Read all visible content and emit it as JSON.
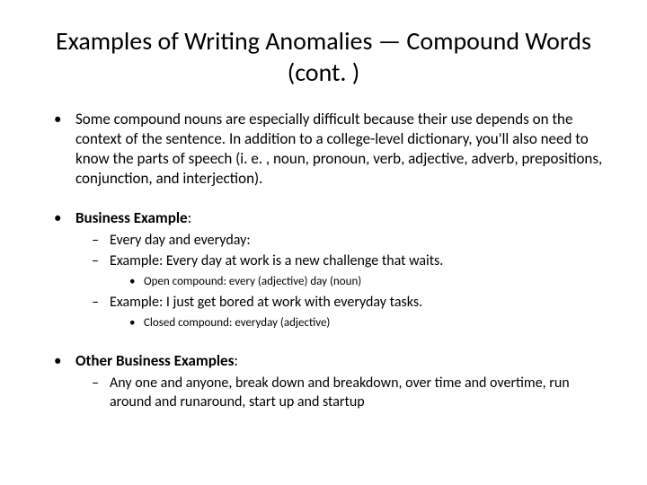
{
  "title": "Examples of Writing Anomalies — Compound Words (cont. )",
  "bullets": {
    "intro": "Some compound nouns are especially difficult because their use depends on the context of the sentence.  In addition to a college-level dictionary, you'll also need to know the parts of speech (i. e. , noun, pronoun, verb, adjective, adverb, prepositions, conjunction, and interjection).",
    "bizHeading": "Business Example",
    "biz": {
      "sub1": "Every day and everyday:",
      "sub2": "Example: Every day at work is a new challenge that waits.",
      "sub2detail": "Open compound: every (adjective) day (noun)",
      "sub3": "Example: I just get bored at work with everyday tasks.",
      "sub3detail": "Closed compound: everyday (adjective)"
    },
    "otherHeading": "Other Business Examples",
    "otherText": "Any one and anyone, break down and breakdown, over time and overtime, run around and runaround, start up and startup"
  },
  "styling": {
    "background_color": "#ffffff",
    "text_color": "#000000",
    "title_fontsize": 28,
    "body_fontsize": 17,
    "sub_fontsize": 16,
    "subsub_fontsize": 13,
    "font_family": "Calibri"
  }
}
